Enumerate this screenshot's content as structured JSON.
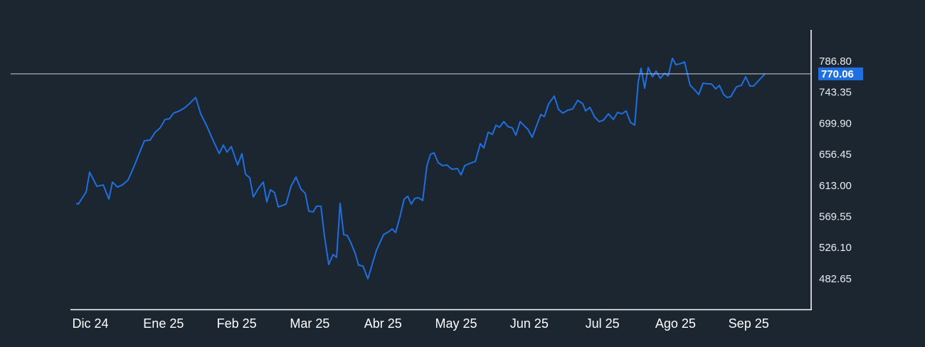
{
  "chart_data": {
    "type": "line",
    "x": [
      -0.195,
      -0.165,
      -0.058,
      -0.01,
      0.088,
      0.175,
      0.253,
      0.302,
      0.37,
      0.438,
      0.516,
      0.593,
      0.671,
      0.739,
      0.817,
      0.885,
      0.953,
      1.021,
      1.08,
      1.138,
      1.216,
      1.284,
      1.352,
      1.44,
      1.508,
      1.586,
      1.663,
      1.761,
      1.819,
      1.868,
      1.926,
      2.014,
      2.072,
      2.121,
      2.179,
      2.228,
      2.296,
      2.364,
      2.412,
      2.461,
      2.519,
      2.568,
      2.675,
      2.743,
      2.811,
      2.879,
      2.938,
      2.986,
      3.045,
      3.093,
      3.152,
      3.2,
      3.259,
      3.317,
      3.366,
      3.414,
      3.463,
      3.512,
      3.56,
      3.619,
      3.667,
      3.726,
      3.794,
      3.852,
      3.911,
      4.008,
      4.076,
      4.125,
      4.173,
      4.232,
      4.29,
      4.339,
      4.387,
      4.436,
      4.484,
      4.543,
      4.601,
      4.65,
      4.698,
      4.757,
      4.815,
      4.874,
      4.942,
      5.019,
      5.068,
      5.117,
      5.185,
      5.263,
      5.331,
      5.379,
      5.438,
      5.496,
      5.545,
      5.593,
      5.652,
      5.71,
      5.769,
      5.817,
      5.875,
      5.934,
      5.982,
      6.041,
      6.099,
      6.158,
      6.206,
      6.265,
      6.342,
      6.401,
      6.459,
      6.527,
      6.595,
      6.663,
      6.732,
      6.77,
      6.829,
      6.897,
      6.955,
      7.014,
      7.082,
      7.15,
      7.208,
      7.266,
      7.325,
      7.383,
      7.442,
      7.49,
      7.529,
      7.578,
      7.626,
      7.685,
      7.734,
      7.792,
      7.85,
      7.899,
      7.957,
      8.006,
      8.084,
      8.123,
      8.2,
      8.259,
      8.317,
      8.376,
      8.444,
      8.492,
      8.551,
      8.599,
      8.658,
      8.706,
      8.755,
      8.833,
      8.901,
      8.959,
      9.018,
      9.066,
      9.222
    ],
    "values": [
      589.0,
      588.0,
      604.9,
      632.7,
      612.9,
      614.8,
      595.0,
      618.8,
      611.8,
      614.8,
      621.8,
      639.7,
      659.6,
      676.5,
      677.5,
      688.4,
      694.4,
      706.3,
      707.3,
      715.2,
      718.2,
      722.2,
      728.2,
      737.1,
      714.2,
      698.3,
      680.5,
      658.6,
      670.5,
      660.6,
      668.5,
      642.7,
      658.6,
      629.7,
      624.8,
      597.9,
      609.9,
      618.8,
      591.0,
      607.9,
      603.9,
      584.0,
      588.0,
      612.9,
      625.8,
      608.9,
      602.9,
      578.0,
      577.0,
      585.0,
      585.0,
      543.3,
      503.5,
      517.4,
      513.4,
      589.0,
      545.2,
      544.2,
      534.3,
      519.4,
      502.5,
      501.5,
      483.6,
      503.5,
      523.4,
      545.2,
      549.2,
      553.2,
      548.2,
      570.1,
      595.0,
      598.9,
      588.0,
      596.0,
      597.0,
      593.0,
      641.7,
      657.6,
      659.6,
      645.7,
      641.7,
      642.7,
      636.7,
      637.7,
      628.8,
      641.7,
      644.7,
      647.6,
      672.5,
      666.5,
      688.4,
      685.4,
      698.3,
      695.4,
      703.3,
      696.3,
      694.4,
      684.4,
      703.3,
      697.3,
      692.4,
      681.4,
      697.3,
      713.2,
      710.3,
      728.2,
      739.1,
      720.2,
      715.2,
      719.2,
      721.2,
      733.2,
      728.2,
      718.2,
      723.2,
      709.3,
      703.3,
      705.3,
      714.2,
      706.3,
      716.2,
      714.2,
      718.2,
      702.3,
      698.3,
      759.0,
      777.9,
      750.0,
      778.9,
      765.9,
      773.9,
      764.0,
      770.9,
      767.0,
      791.8,
      782.8,
      784.8,
      786.8,
      754.0,
      748.0,
      741.1,
      757.0,
      756.0,
      756.0,
      749.0,
      754.0,
      741.1,
      737.1,
      738.1,
      752.0,
      754.0,
      765.9,
      753.0,
      753.0,
      770.06
    ],
    "color": "#1f6fe0",
    "last_value": 770.06,
    "last_value_color": "#1f6fe0",
    "xlim": [
      -0.263,
      9.854
    ],
    "xticks": [
      {
        "value": 0,
        "label": "Dic 24"
      },
      {
        "value": 1,
        "label": "Ene 25"
      },
      {
        "value": 2,
        "label": "Feb 25"
      },
      {
        "value": 3,
        "label": "Mar 25"
      },
      {
        "value": 4,
        "label": "Abr 25"
      },
      {
        "value": 5,
        "label": "May 25"
      },
      {
        "value": 6,
        "label": "Jun 25"
      },
      {
        "value": 7,
        "label": "Jul 25"
      },
      {
        "value": 8,
        "label": "Ago 25"
      },
      {
        "value": 9,
        "label": "Sep 25"
      }
    ],
    "ylim": [
      440.85,
      831.6
    ],
    "yticks": [
      {
        "value": 786.8,
        "label": "786.80"
      },
      743.35,
      {
        "value": 699.9,
        "label": "699.90"
      },
      656.45,
      {
        "value": 613,
        "label": "613.00"
      },
      569.55,
      {
        "value": 526.1,
        "label": "526.10"
      },
      482.65
    ],
    "grid": false
  }
}
